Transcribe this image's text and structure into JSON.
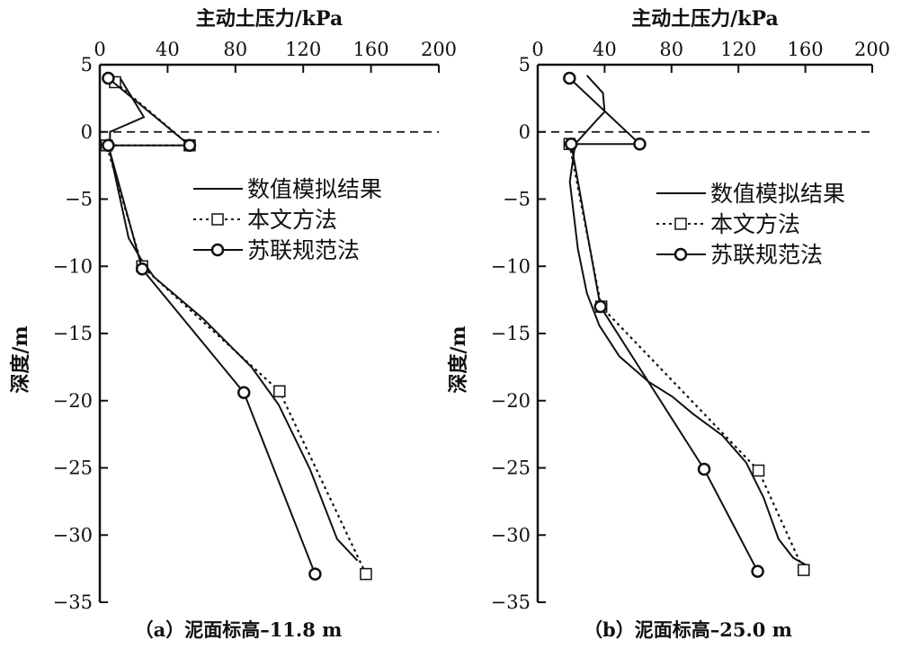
{
  "chart_data": [
    {
      "type": "line",
      "caption": "（a）泥面标高–11.8 m",
      "xlabel": "主动土压力/kPa",
      "ylabel": "深度/m",
      "xlim": [
        0,
        200
      ],
      "ylim": [
        -35,
        5
      ],
      "xticks": [
        "0",
        "40",
        "80",
        "120",
        "160",
        "200"
      ],
      "yticks": [
        "5",
        "0",
        "−5",
        "−10",
        "−15",
        "−20",
        "−25",
        "−30",
        "−35"
      ],
      "reference_line_y": 0,
      "legend_position": "center-right",
      "series": [
        {
          "name": "数值模拟结果",
          "style": "solid",
          "marker": "none",
          "points": [
            [
              11.5,
              4.1
            ],
            [
              26,
              1.1
            ],
            [
              6,
              0
            ],
            [
              6,
              -1.5
            ],
            [
              17,
              -7.9
            ],
            [
              24,
              -9.4
            ],
            [
              32,
              -10.8
            ],
            [
              61,
              -13.9
            ],
            [
              89.5,
              -17.5
            ],
            [
              105.5,
              -20.3
            ],
            [
              124,
              -25.1
            ],
            [
              140,
              -30.3
            ],
            [
              152,
              -31.9
            ]
          ]
        },
        {
          "name": "本文方法",
          "style": "dashed",
          "marker": "square",
          "points": [
            [
              9,
              3.7
            ],
            [
              53,
              -1
            ],
            [
              4,
              -1
            ],
            [
              25,
              -10
            ],
            [
              106,
              -19.3
            ],
            [
              157,
              -32.9
            ]
          ]
        },
        {
          "name": "苏联规范法",
          "style": "solid",
          "marker": "circle",
          "points": [
            [
              5,
              4
            ],
            [
              53,
              -1
            ],
            [
              5,
              -1
            ],
            [
              25,
              -10.2
            ],
            [
              85,
              -19.4
            ],
            [
              127,
              -32.9
            ]
          ]
        }
      ]
    },
    {
      "type": "line",
      "caption": "（b）泥面标高–25.0 m",
      "xlabel": "主动土压力/kPa",
      "ylabel": "深度/m",
      "xlim": [
        0,
        200
      ],
      "ylim": [
        -35,
        5
      ],
      "xticks": [
        "0",
        "40",
        "80",
        "120",
        "160",
        "200"
      ],
      "yticks": [
        "5",
        "0",
        "−5",
        "−10",
        "−15",
        "−20",
        "−25",
        "−30",
        "−35"
      ],
      "reference_line_y": 0,
      "legend_position": "center-right",
      "series": [
        {
          "name": "数值模拟结果",
          "style": "solid",
          "marker": "none",
          "points": [
            [
              29.4,
              4.2
            ],
            [
              39,
              2.9
            ],
            [
              40,
              1.5
            ],
            [
              34.7,
              0.8
            ],
            [
              22.4,
              -0.9
            ],
            [
              19.2,
              -3.7
            ],
            [
              24,
              -8.7
            ],
            [
              29.4,
              -12
            ],
            [
              36.8,
              -14.4
            ],
            [
              48.8,
              -16.7
            ],
            [
              66.4,
              -18.6
            ],
            [
              80.5,
              -19.7
            ],
            [
              93,
              -21
            ],
            [
              110.5,
              -22.6
            ],
            [
              124.6,
              -24.6
            ],
            [
              135,
              -27.2
            ],
            [
              144,
              -30.3
            ],
            [
              152.8,
              -31.7
            ],
            [
              160,
              -32.2
            ]
          ]
        },
        {
          "name": "本文方法",
          "style": "dashed",
          "marker": "square",
          "points": [
            [
              19,
              -0.9
            ],
            [
              38,
              -13
            ],
            [
              132,
              -25.2
            ],
            [
              159,
              -32.6
            ]
          ]
        },
        {
          "name": "苏联规范法",
          "style": "solid",
          "marker": "circle",
          "points": [
            [
              19,
              4
            ],
            [
              61,
              -0.9
            ],
            [
              20,
              -0.9
            ],
            [
              37.5,
              -13
            ],
            [
              99.5,
              -25.1
            ],
            [
              131.5,
              -32.7
            ]
          ]
        }
      ]
    }
  ]
}
